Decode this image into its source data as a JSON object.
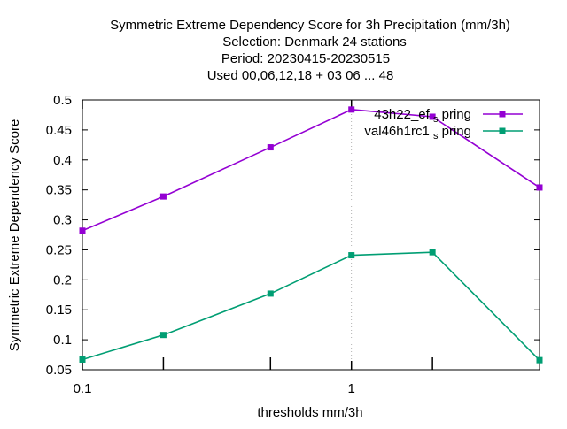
{
  "chart_data": {
    "type": "line",
    "title_lines": [
      "Symmetric Extreme Dependency Score  for 3h Precipitation (mm/3h)",
      "Selection: Denmark     24 stations",
      "Period: 20230415-20230515",
      "Used  00,06,12,18  + 03 06 ... 48"
    ],
    "xlabel": "thresholds mm/3h",
    "ylabel": "Symmetric Extreme Dependency Score",
    "x_scale": "log",
    "xlim": [
      0.1,
      5
    ],
    "ylim": [
      0.05,
      0.5
    ],
    "x_ticks": [
      {
        "value": 0.1,
        "label": "0.1"
      },
      {
        "value": 1,
        "label": "1"
      }
    ],
    "x_minor_ticks": [
      0.2,
      0.5,
      2
    ],
    "y_ticks": [
      {
        "value": 0.05,
        "label": "0.05"
      },
      {
        "value": 0.1,
        "label": "0.1"
      },
      {
        "value": 0.15,
        "label": "0.15"
      },
      {
        "value": 0.2,
        "label": "0.2"
      },
      {
        "value": 0.25,
        "label": "0.25"
      },
      {
        "value": 0.3,
        "label": "0.3"
      },
      {
        "value": 0.35,
        "label": "0.35"
      },
      {
        "value": 0.4,
        "label": "0.4"
      },
      {
        "value": 0.45,
        "label": "0.45"
      },
      {
        "value": 0.5,
        "label": "0.5"
      }
    ],
    "x": [
      0.1,
      0.2,
      0.5,
      1,
      2,
      5
    ],
    "series": [
      {
        "name_main": "43h22_ef",
        "name_sub": "s",
        "name_tail": "pring",
        "color": "#9400d3",
        "values": [
          0.282,
          0.339,
          0.421,
          0.484,
          0.472,
          0.354
        ]
      },
      {
        "name_main": "val46h1rc1",
        "name_sub": "s",
        "name_tail": "pring",
        "color": "#009e73",
        "values": [
          0.067,
          0.108,
          0.177,
          0.241,
          0.246,
          0.066
        ]
      }
    ],
    "legend_position": "top-right",
    "grid": "vertical at major x ticks"
  }
}
